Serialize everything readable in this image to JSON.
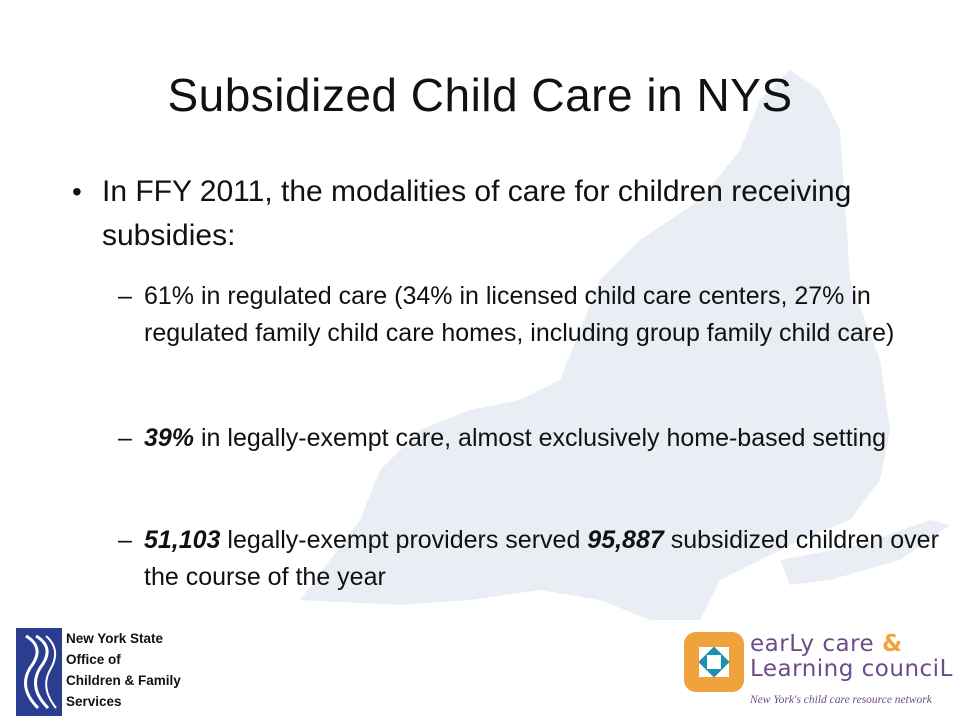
{
  "slide": {
    "title": "Subsidized Child Care in NYS",
    "bullet_main": "In FFY 2011, the modalities of care for children receiving subsidies:",
    "sub1": {
      "text": "61% in regulated care (34% in licensed child care centers, 27% in regulated family child care homes, including group family child care)"
    },
    "sub2": {
      "bold": "39%",
      "text": " in legally-exempt care, almost exclusively home-based setting"
    },
    "sub3": {
      "bold1": "51,103",
      "text1": " legally-exempt providers served ",
      "bold2": "95,887",
      "text2": " subsidized children over the course of the year"
    }
  },
  "logos": {
    "ocfs": {
      "line1": "New York State",
      "line2": "Office of",
      "line3": "Children & Family",
      "line4": "Services"
    },
    "eclc": {
      "word1": "earLy care",
      "amp": "&",
      "word2": "Learning counciL",
      "tagline": "New York's child care resource network"
    }
  },
  "colors": {
    "map_fill": "#e9eef5",
    "ocfs_blue": "#2a3d8f",
    "eclc_orange": "#f0a33a",
    "eclc_teal": "#1b8fb5",
    "eclc_purple": "#6d4c8a"
  }
}
